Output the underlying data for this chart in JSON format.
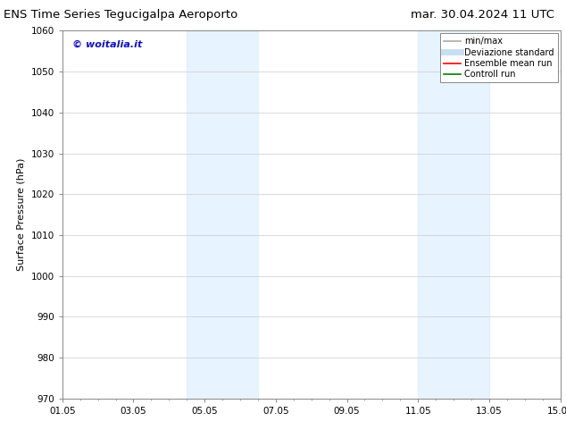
{
  "title_left": "ENS Time Series Tegucigalpa Aeroporto",
  "title_right": "mar. 30.04.2024 11 UTC",
  "ylabel": "Surface Pressure (hPa)",
  "ylim": [
    970,
    1060
  ],
  "yticks": [
    970,
    980,
    990,
    1000,
    1010,
    1020,
    1030,
    1040,
    1050,
    1060
  ],
  "xtick_labels": [
    "01.05",
    "03.05",
    "05.05",
    "07.05",
    "09.05",
    "11.05",
    "13.05",
    "15.05"
  ],
  "xtick_positions": [
    0,
    2,
    4,
    6,
    8,
    10,
    12,
    14
  ],
  "xlim": [
    0,
    14
  ],
  "shaded_bands": [
    {
      "x_start": 3.5,
      "x_end": 5.5,
      "color": "#ddeeff",
      "alpha": 0.7
    },
    {
      "x_start": 10.0,
      "x_end": 12.0,
      "color": "#ddeeff",
      "alpha": 0.7
    }
  ],
  "watermark_text": "© woitalia.it",
  "watermark_color": "#1111cc",
  "legend_items": [
    {
      "label": "min/max",
      "color": "#aaaaaa",
      "lw": 1.2,
      "ls": "-"
    },
    {
      "label": "Deviazione standard",
      "color": "#c8dff0",
      "lw": 5,
      "ls": "-"
    },
    {
      "label": "Ensemble mean run",
      "color": "#ff0000",
      "lw": 1.2,
      "ls": "-"
    },
    {
      "label": "Controll run",
      "color": "#008000",
      "lw": 1.2,
      "ls": "-"
    }
  ],
  "bg_color": "#ffffff",
  "grid_color": "#cccccc",
  "title_fontsize": 9.5,
  "ylabel_fontsize": 8,
  "tick_fontsize": 7.5,
  "watermark_fontsize": 8,
  "legend_fontsize": 7
}
